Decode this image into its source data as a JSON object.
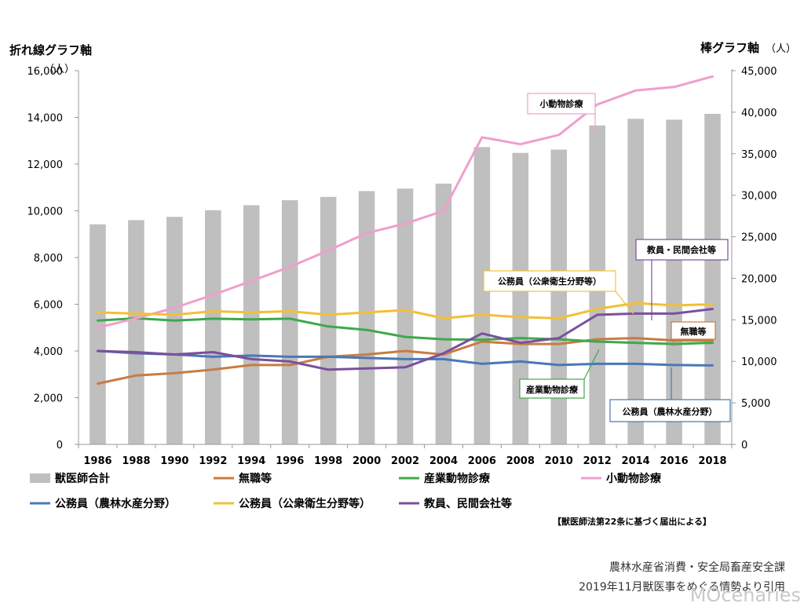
{
  "chart_data": {
    "type": "bar+line",
    "categories": [
      "1986",
      "1988",
      "1990",
      "1992",
      "1994",
      "1996",
      "1998",
      "2000",
      "2002",
      "2004",
      "2006",
      "2008",
      "2010",
      "2012",
      "2014",
      "2016",
      "2018"
    ],
    "left_axis": {
      "title": "折れ線グラフ軸",
      "unit": "（人）",
      "range": [
        0,
        16000
      ],
      "step": 2000,
      "ticks": [
        "0",
        "2,000",
        "4,000",
        "6,000",
        "8,000",
        "10,000",
        "12,000",
        "14,000",
        "16,000"
      ]
    },
    "right_axis": {
      "title": "棒グラフ軸",
      "unit": "（人）",
      "range": [
        0,
        45000
      ],
      "step": 5000,
      "ticks": [
        "0",
        "5,000",
        "10,000",
        "15,000",
        "20,000",
        "25,000",
        "30,000",
        "35,000",
        "40,000",
        "45,000"
      ]
    },
    "bars": {
      "name": "獣医師合計",
      "color": "#bfbfbf",
      "axis": "right",
      "values": [
        26500,
        27000,
        27400,
        28200,
        28800,
        29400,
        29800,
        30500,
        30800,
        31400,
        35800,
        35100,
        35500,
        38400,
        39200,
        39100,
        39800
      ]
    },
    "series": [
      {
        "name": "無職等",
        "color": "#c77c42",
        "values": [
          2600,
          2950,
          3050,
          3200,
          3400,
          3400,
          3750,
          3850,
          4000,
          3850,
          4400,
          4300,
          4300,
          4500,
          4550,
          4450,
          4450
        ]
      },
      {
        "name": "産業動物診療",
        "color": "#3fa84b",
        "values": [
          5300,
          5400,
          5300,
          5380,
          5350,
          5380,
          5050,
          4900,
          4600,
          4500,
          4480,
          4550,
          4500,
          4400,
          4350,
          4300,
          4350
        ]
      },
      {
        "name": "小動物診療",
        "color": "#ef9fcd",
        "values": [
          5000,
          5400,
          5850,
          6400,
          7000,
          7600,
          8300,
          9050,
          9450,
          10000,
          13150,
          12850,
          13250,
          14550,
          15150,
          15300,
          15750
        ]
      },
      {
        "name": "公務員（農林水産分野）",
        "color": "#4a78b5",
        "values": [
          4000,
          3900,
          3850,
          3750,
          3800,
          3750,
          3750,
          3700,
          3650,
          3650,
          3450,
          3550,
          3400,
          3450,
          3450,
          3400,
          3380
        ]
      },
      {
        "name": "公務員（公衆衛生分野等）",
        "color": "#f2c037",
        "values": [
          5650,
          5600,
          5550,
          5700,
          5650,
          5700,
          5550,
          5650,
          5750,
          5400,
          5550,
          5450,
          5400,
          5800,
          6050,
          5950,
          6000
        ]
      },
      {
        "name": "教員、民間会社等",
        "color": "#7b4f9d",
        "values": [
          4000,
          3950,
          3850,
          3950,
          3650,
          3550,
          3200,
          3250,
          3300,
          3900,
          4750,
          4350,
          4550,
          5550,
          5600,
          5600,
          5800
        ]
      }
    ],
    "callouts": [
      {
        "text": "小動物診療",
        "border": "#ef9fcd",
        "series": 2
      },
      {
        "text": "教員・民間会社等",
        "border": "#7b4f9d",
        "series": 5
      },
      {
        "text": "公務員（公衆衛生分野等）",
        "border": "#f2c037",
        "series": 4
      },
      {
        "text": "無職等",
        "border": "#c77c42",
        "series": 0
      },
      {
        "text": "産業動物診療",
        "border": "#3fa84b",
        "series": 1
      },
      {
        "text": "公務員（農林水産分野）",
        "border": "#4a78b5",
        "series": 3
      }
    ],
    "legend_placement": "bottom",
    "grid": false
  },
  "footnote": "【獣医師法第22条に基づく届出による】",
  "source_lines": [
    "農林水産省消費・安全局畜産安全課",
    "2019年11月獣医事をめぐる情勢より引用"
  ],
  "watermark": "MOcenaries"
}
